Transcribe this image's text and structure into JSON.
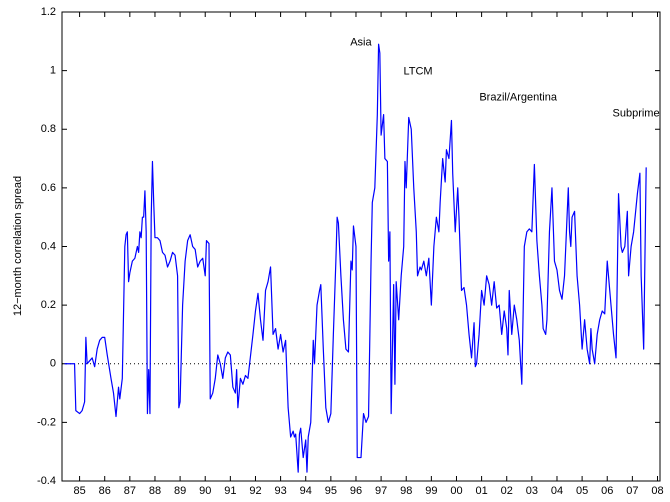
{
  "chart_data": {
    "type": "line",
    "y_label": "12−month correlation spread",
    "xlim": [
      1984.3,
      2008.1
    ],
    "ylim": [
      -0.4,
      1.2
    ],
    "yticks": [
      -0.4,
      -0.2,
      0,
      0.2,
      0.4,
      0.6,
      0.8,
      1,
      1.2
    ],
    "xticks": [
      {
        "value": 1985,
        "label": "85"
      },
      {
        "value": 1986,
        "label": "86"
      },
      {
        "value": 1987,
        "label": "87"
      },
      {
        "value": 1988,
        "label": "88"
      },
      {
        "value": 1989,
        "label": "89"
      },
      {
        "value": 1990,
        "label": "90"
      },
      {
        "value": 1991,
        "label": "91"
      },
      {
        "value": 1992,
        "label": "92"
      },
      {
        "value": 1993,
        "label": "93"
      },
      {
        "value": 1994,
        "label": "94"
      },
      {
        "value": 1995,
        "label": "95"
      },
      {
        "value": 1996,
        "label": "96"
      },
      {
        "value": 1997,
        "label": "97"
      },
      {
        "value": 1998,
        "label": "98"
      },
      {
        "value": 1999,
        "label": "99"
      },
      {
        "value": 2000,
        "label": "00"
      },
      {
        "value": 2001,
        "label": "01"
      },
      {
        "value": 2002,
        "label": "02"
      },
      {
        "value": 2003,
        "label": "03"
      },
      {
        "value": 2004,
        "label": "04"
      },
      {
        "value": 2005,
        "label": "05"
      },
      {
        "value": 2006,
        "label": "06"
      },
      {
        "value": 2007,
        "label": "07"
      },
      {
        "value": 2008,
        "label": "08"
      }
    ],
    "reference_line": 0,
    "annotations": [
      {
        "text": "Asia",
        "x": 1995.77,
        "y": 1.095
      },
      {
        "text": "LTCM",
        "x": 1997.89,
        "y": 0.997
      },
      {
        "text": "Brazil/Argentina",
        "x": 2000.91,
        "y": 0.908
      },
      {
        "text": "Subprime",
        "x": 2006.21,
        "y": 0.853
      }
    ],
    "series": [
      {
        "color": "#0000ff",
        "x": [
          1984.4,
          1984.8,
          1984.85,
          1985.0,
          1985.1,
          1985.2,
          1985.25,
          1985.3,
          1985.4,
          1985.5,
          1985.6,
          1985.7,
          1985.8,
          1985.9,
          1986.0,
          1986.1,
          1986.25,
          1986.35,
          1986.45,
          1986.55,
          1986.6,
          1986.7,
          1986.8,
          1986.85,
          1986.9,
          1986.95,
          1987.0,
          1987.1,
          1987.2,
          1987.3,
          1987.35,
          1987.4,
          1987.45,
          1987.5,
          1987.55,
          1987.6,
          1987.65,
          1987.7,
          1987.75,
          1987.8,
          1987.85,
          1987.9,
          1987.95,
          1988.0,
          1988.1,
          1988.2,
          1988.3,
          1988.4,
          1988.5,
          1988.6,
          1988.7,
          1988.8,
          1988.9,
          1988.95,
          1989.0,
          1989.1,
          1989.2,
          1989.3,
          1989.4,
          1989.5,
          1989.6,
          1989.7,
          1989.8,
          1989.9,
          1990.0,
          1990.05,
          1990.15,
          1990.2,
          1990.3,
          1990.4,
          1990.5,
          1990.6,
          1990.7,
          1990.8,
          1990.9,
          1991.0,
          1991.1,
          1991.2,
          1991.25,
          1991.3,
          1991.4,
          1991.5,
          1991.6,
          1991.7,
          1991.9,
          1992.0,
          1992.1,
          1992.2,
          1992.3,
          1992.4,
          1992.5,
          1992.6,
          1992.7,
          1992.8,
          1992.9,
          1993.0,
          1993.1,
          1993.2,
          1993.3,
          1993.4,
          1993.5,
          1993.55,
          1993.6,
          1993.7,
          1993.75,
          1993.8,
          1993.9,
          1994.0,
          1994.05,
          1994.1,
          1994.2,
          1994.3,
          1994.35,
          1994.45,
          1994.55,
          1994.6,
          1994.7,
          1994.8,
          1994.9,
          1995.0,
          1995.1,
          1995.2,
          1995.25,
          1995.3,
          1995.4,
          1995.5,
          1995.6,
          1995.7,
          1995.8,
          1995.85,
          1995.9,
          1996.0,
          1996.05,
          1996.15,
          1996.2,
          1996.3,
          1996.4,
          1996.5,
          1996.6,
          1996.65,
          1996.75,
          1996.85,
          1996.9,
          1996.95,
          1997.0,
          1997.1,
          1997.15,
          1997.25,
          1997.3,
          1997.35,
          1997.4,
          1997.5,
          1997.55,
          1997.6,
          1997.7,
          1997.8,
          1997.9,
          1997.95,
          1998.0,
          1998.1,
          1998.2,
          1998.3,
          1998.4,
          1998.45,
          1998.55,
          1998.6,
          1998.7,
          1998.8,
          1998.9,
          1999.0,
          1999.1,
          1999.2,
          1999.3,
          1999.35,
          1999.45,
          1999.55,
          1999.6,
          1999.7,
          1999.8,
          1999.85,
          1999.95,
          2000.05,
          2000.1,
          2000.2,
          2000.3,
          2000.4,
          2000.5,
          2000.6,
          2000.7,
          2000.75,
          2000.8,
          2000.9,
          2001.0,
          2001.1,
          2001.2,
          2001.3,
          2001.4,
          2001.5,
          2001.6,
          2001.7,
          2001.8,
          2001.9,
          2002.0,
          2002.05,
          2002.1,
          2002.2,
          2002.3,
          2002.4,
          2002.5,
          2002.6,
          2002.7,
          2002.8,
          2002.9,
          2003.0,
          2003.1,
          2003.2,
          2003.3,
          2003.4,
          2003.45,
          2003.55,
          2003.6,
          2003.7,
          2003.8,
          2003.9,
          2004.0,
          2004.1,
          2004.2,
          2004.3,
          2004.35,
          2004.4,
          2004.45,
          2004.5,
          2004.55,
          2004.6,
          2004.7,
          2004.8,
          2004.9,
          2005.0,
          2005.1,
          2005.2,
          2005.3,
          2005.35,
          2005.4,
          2005.5,
          2005.6,
          2005.7,
          2005.8,
          2005.9,
          2006.0,
          2006.05,
          2006.15,
          2006.25,
          2006.35,
          2006.45,
          2006.55,
          2006.6,
          2006.7,
          2006.8,
          2006.85,
          2006.95,
          2007.05,
          2007.2,
          2007.3,
          2007.35,
          2007.45,
          2007.55
        ],
        "values": [
          0,
          0,
          -0.16,
          -0.17,
          -0.16,
          -0.13,
          0.09,
          0.0,
          0.01,
          0.02,
          -0.01,
          0.05,
          0.08,
          0.09,
          0.09,
          0.03,
          -0.05,
          -0.1,
          -0.18,
          -0.08,
          -0.12,
          -0.05,
          0.4,
          0.44,
          0.45,
          0.28,
          0.31,
          0.35,
          0.36,
          0.4,
          0.38,
          0.45,
          0.43,
          0.5,
          0.5,
          0.59,
          0.45,
          -0.17,
          -0.02,
          -0.17,
          0.5,
          0.69,
          0.55,
          0.43,
          0.43,
          0.42,
          0.38,
          0.37,
          0.33,
          0.35,
          0.38,
          0.37,
          0.3,
          -0.15,
          -0.13,
          0.2,
          0.35,
          0.42,
          0.44,
          0.4,
          0.39,
          0.33,
          0.35,
          0.36,
          0.3,
          0.42,
          0.41,
          -0.12,
          -0.1,
          -0.05,
          0.03,
          0.0,
          -0.05,
          0.02,
          0.04,
          0.03,
          -0.08,
          -0.1,
          -0.02,
          -0.15,
          -0.05,
          -0.07,
          -0.04,
          -0.05,
          0.1,
          0.18,
          0.24,
          0.15,
          0.08,
          0.25,
          0.28,
          0.33,
          0.1,
          0.12,
          0.05,
          0.1,
          0.04,
          0.08,
          -0.15,
          -0.25,
          -0.23,
          -0.25,
          -0.24,
          -0.37,
          -0.24,
          -0.22,
          -0.32,
          -0.26,
          -0.37,
          -0.25,
          -0.2,
          0.08,
          0.0,
          0.2,
          0.25,
          0.27,
          0.05,
          -0.15,
          -0.2,
          -0.17,
          0.1,
          0.35,
          0.5,
          0.48,
          0.3,
          0.15,
          0.05,
          0.04,
          0.35,
          0.32,
          0.47,
          0.4,
          -0.32,
          -0.32,
          -0.32,
          -0.17,
          -0.2,
          -0.18,
          0.35,
          0.55,
          0.6,
          0.85,
          1.09,
          1.06,
          0.78,
          0.85,
          0.7,
          0.69,
          0.35,
          0.45,
          -0.17,
          0.27,
          -0.07,
          0.28,
          0.15,
          0.3,
          0.4,
          0.69,
          0.6,
          0.84,
          0.8,
          0.6,
          0.45,
          0.3,
          0.33,
          0.32,
          0.35,
          0.3,
          0.36,
          0.2,
          0.4,
          0.5,
          0.45,
          0.55,
          0.7,
          0.62,
          0.73,
          0.7,
          0.83,
          0.65,
          0.45,
          0.6,
          0.5,
          0.25,
          0.26,
          0.2,
          0.1,
          0.02,
          0.14,
          -0.01,
          0.0,
          0.1,
          0.25,
          0.2,
          0.3,
          0.27,
          0.2,
          0.28,
          0.19,
          0.2,
          0.1,
          0.18,
          0.12,
          0.03,
          0.25,
          0.1,
          0.2,
          0.15,
          0.08,
          -0.07,
          0.4,
          0.45,
          0.46,
          0.45,
          0.68,
          0.42,
          0.3,
          0.2,
          0.12,
          0.1,
          0.15,
          0.45,
          0.6,
          0.35,
          0.32,
          0.25,
          0.22,
          0.3,
          0.4,
          0.5,
          0.6,
          0.45,
          0.4,
          0.5,
          0.52,
          0.3,
          0.2,
          0.05,
          0.15,
          0.05,
          0.0,
          0.12,
          0.05,
          0.0,
          0.1,
          0.15,
          0.18,
          0.17,
          0.35,
          0.3,
          0.2,
          0.1,
          0.02,
          0.58,
          0.4,
          0.38,
          0.4,
          0.52,
          0.3,
          0.4,
          0.45,
          0.58,
          0.65,
          0.3,
          0.05,
          0.67
        ]
      }
    ]
  }
}
